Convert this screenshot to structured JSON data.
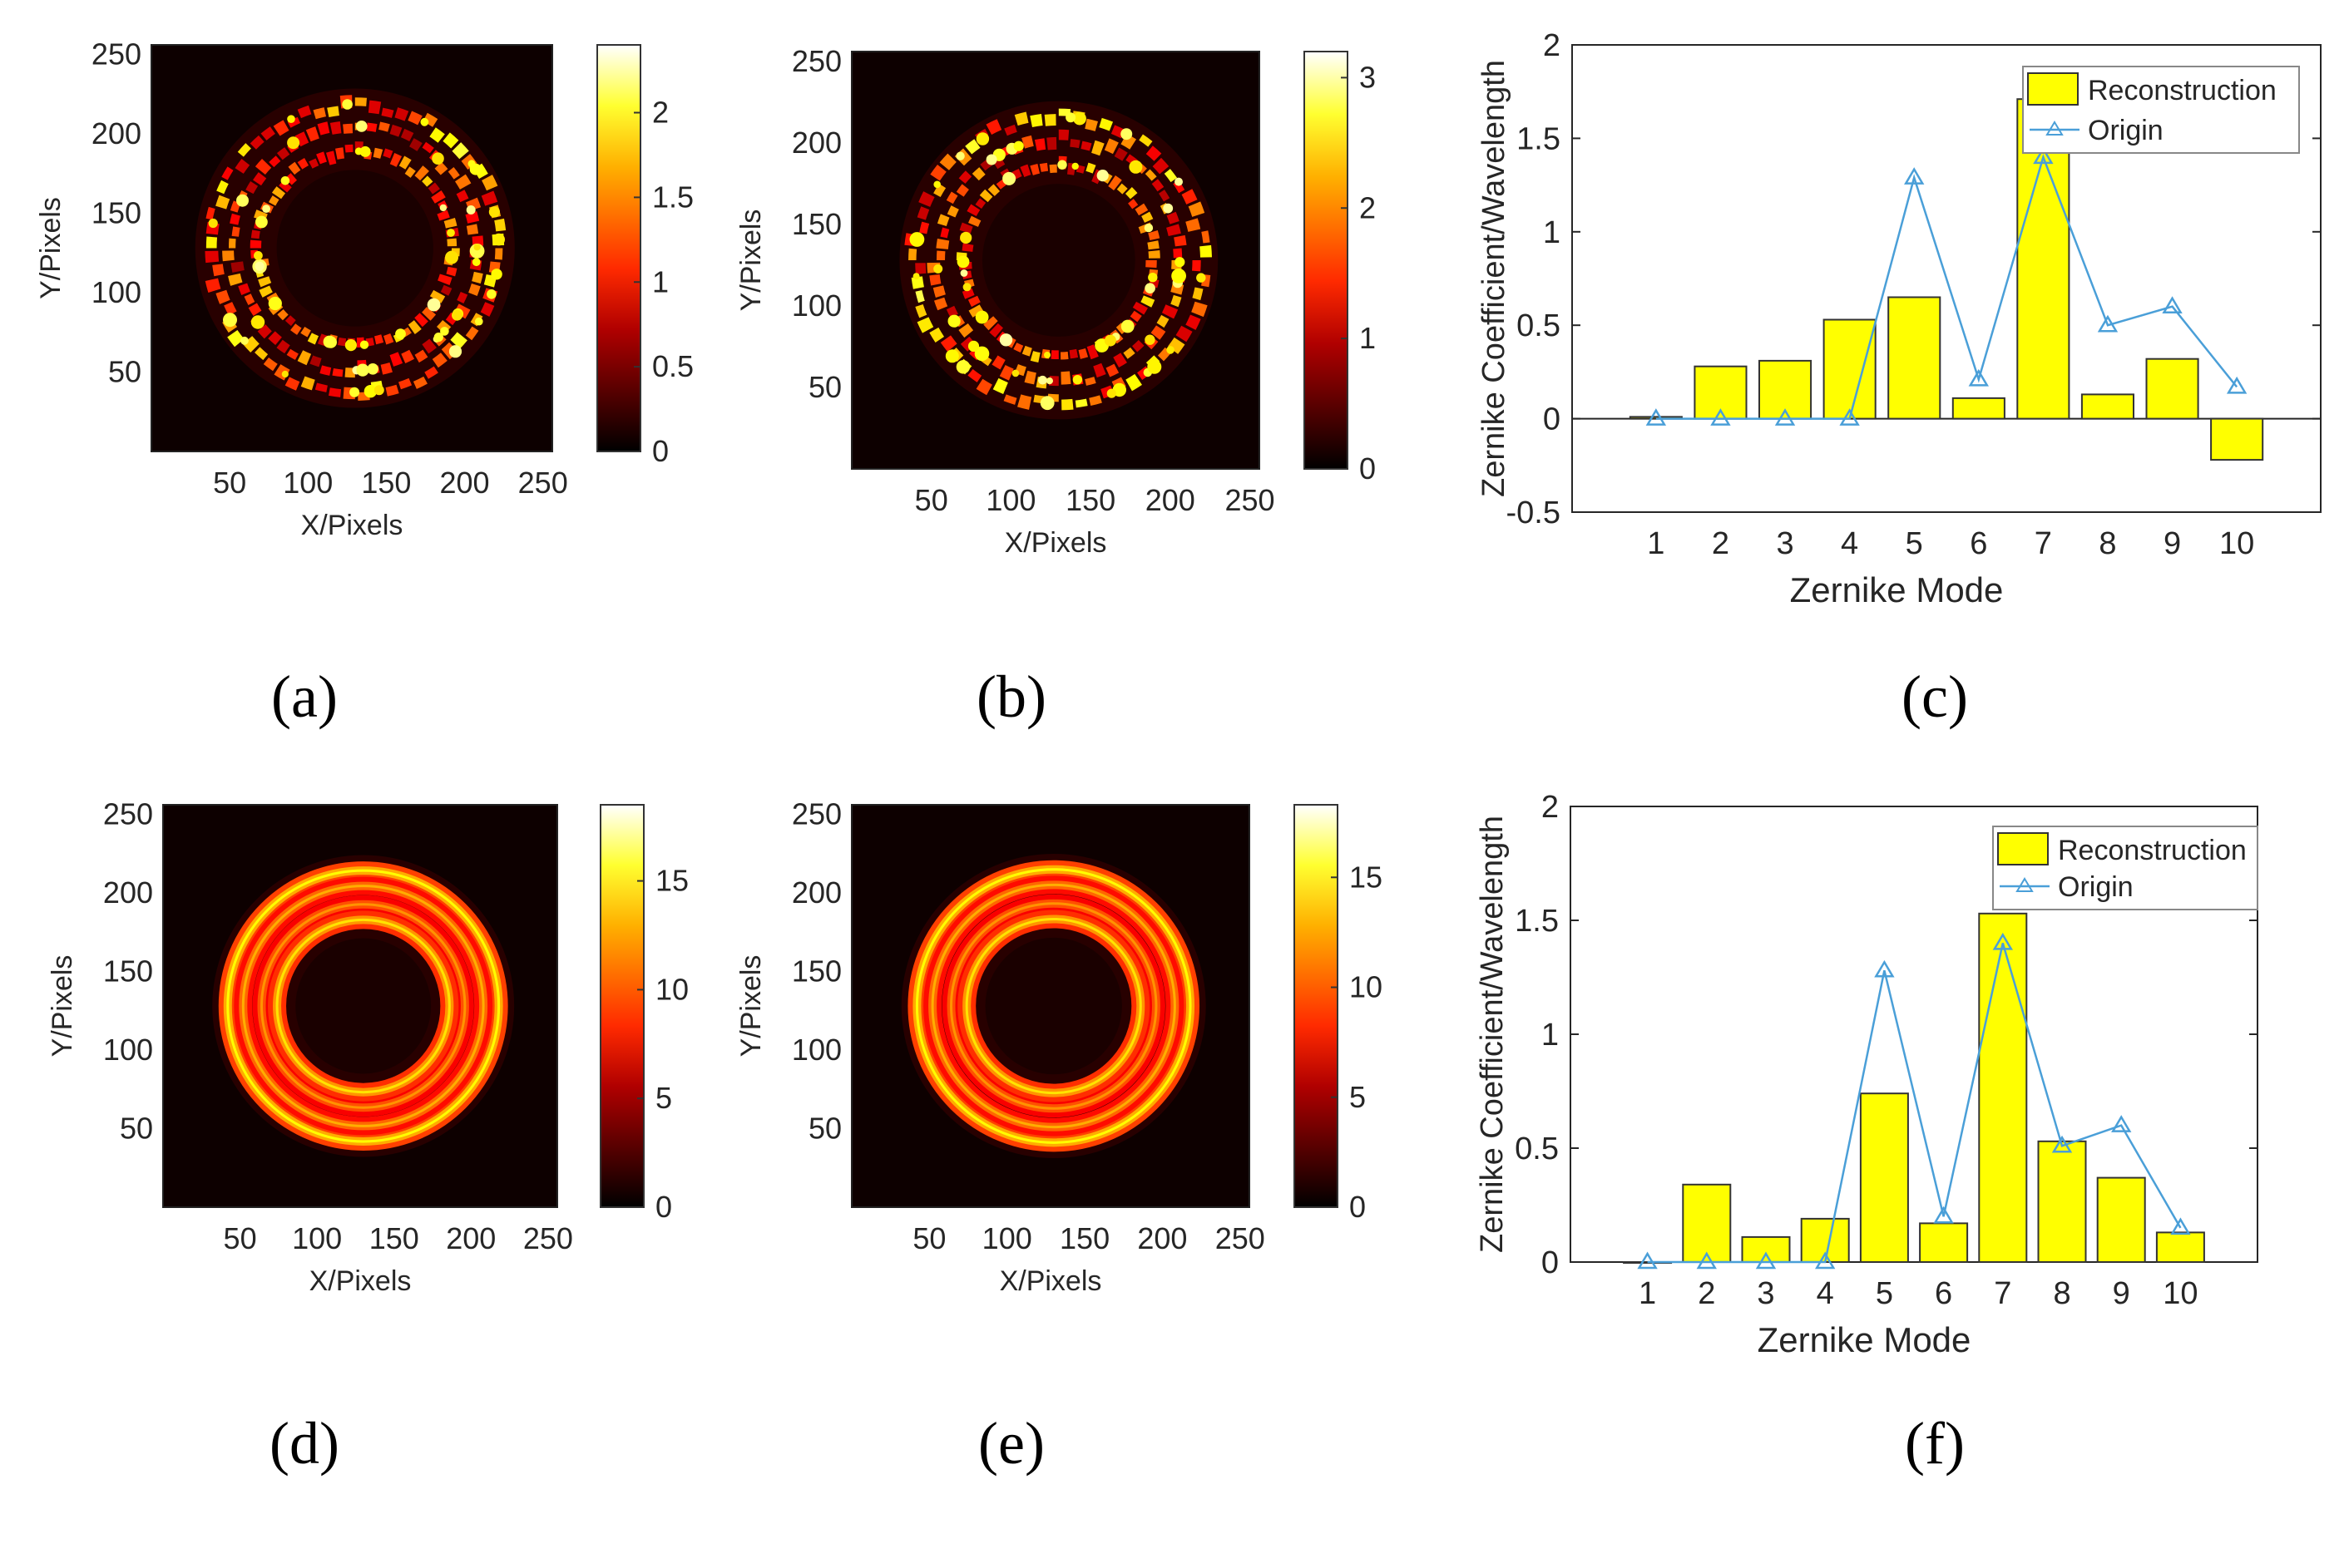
{
  "colors": {
    "bar_fill": "#ffff00",
    "bar_edge": "#333333",
    "line": "#4a9fd8",
    "axis": "#262626"
  },
  "chart_data": [
    {
      "panel": "(a)",
      "type": "heatmap",
      "xlabel": "X/Pixels",
      "ylabel": "Y/Pixels",
      "xticks": [
        "50",
        "100",
        "150",
        "200",
        "250"
      ],
      "yticks": [
        "50",
        "100",
        "150",
        "200",
        "250"
      ],
      "xlim": [
        0,
        256
      ],
      "ylim": [
        0,
        256
      ],
      "colorbar_ticks": [
        "0",
        "0.5",
        "1",
        "1.5",
        "2"
      ],
      "colorbar_range": [
        0,
        2.4
      ],
      "pattern": "broken ring, speckled",
      "rings": [
        {
          "radius": 62,
          "peak": 0.9
        },
        {
          "radius": 78,
          "peak": 0.8
        },
        {
          "radius": 92,
          "peak": 1.0
        }
      ]
    },
    {
      "panel": "(b)",
      "type": "heatmap",
      "xlabel": "X/Pixels",
      "ylabel": "Y/Pixels",
      "xticks": [
        "50",
        "100",
        "150",
        "200",
        "250"
      ],
      "yticks": [
        "50",
        "100",
        "150",
        "200",
        "250"
      ],
      "xlim": [
        0,
        256
      ],
      "ylim": [
        0,
        256
      ],
      "colorbar_ticks": [
        "0",
        "1",
        "2",
        "3"
      ],
      "colorbar_range": [
        0,
        3.2
      ],
      "pattern": "broken ring, speckled",
      "rings": [
        {
          "radius": 60,
          "peak": 0.9
        },
        {
          "radius": 76,
          "peak": 0.85
        },
        {
          "radius": 90,
          "peak": 1.0
        }
      ]
    },
    {
      "panel": "(c)",
      "type": "bar",
      "xlabel": "Zernike Mode",
      "ylabel": "Zernike Coefficient/Wavelength",
      "categories": [
        "1",
        "2",
        "3",
        "4",
        "5",
        "6",
        "7",
        "8",
        "9",
        "10"
      ],
      "yticks": [
        "-0.5",
        "0",
        "0.5",
        "1",
        "1.5",
        "2"
      ],
      "ylim": [
        -0.5,
        2
      ],
      "legend_position": "top-right",
      "series": [
        {
          "name": "Reconstruction",
          "type": "bar",
          "values": [
            0.01,
            0.28,
            0.31,
            0.53,
            0.65,
            0.11,
            1.71,
            0.13,
            0.32,
            -0.22
          ]
        },
        {
          "name": "Origin",
          "type": "line",
          "values": [
            0,
            0,
            0,
            0,
            1.29,
            0.21,
            1.4,
            0.5,
            0.6,
            0.17
          ]
        }
      ]
    },
    {
      "panel": "(d)",
      "type": "heatmap",
      "xlabel": "X/Pixels",
      "ylabel": "Y/Pixels",
      "xticks": [
        "50",
        "100",
        "150",
        "200",
        "250"
      ],
      "yticks": [
        "50",
        "100",
        "150",
        "200",
        "250"
      ],
      "xlim": [
        0,
        256
      ],
      "ylim": [
        0,
        256
      ],
      "colorbar_ticks": [
        "0",
        "5",
        "10",
        "15"
      ],
      "colorbar_range": [
        0,
        18.5
      ],
      "pattern": "smooth concentric rings",
      "rings": [
        {
          "radius": 56,
          "peak": 0.95
        },
        {
          "radius": 66,
          "peak": 0.8
        },
        {
          "radius": 78,
          "peak": 0.85
        },
        {
          "radius": 88,
          "peak": 1.0
        }
      ]
    },
    {
      "panel": "(e)",
      "type": "heatmap",
      "xlabel": "X/Pixels",
      "ylabel": "Y/Pixels",
      "xticks": [
        "50",
        "100",
        "150",
        "200",
        "250"
      ],
      "yticks": [
        "50",
        "100",
        "150",
        "200",
        "250"
      ],
      "xlim": [
        0,
        256
      ],
      "ylim": [
        0,
        256
      ],
      "colorbar_ticks": [
        "0",
        "5",
        "10",
        "15"
      ],
      "colorbar_range": [
        0,
        18.3
      ],
      "pattern": "smooth concentric rings",
      "rings": [
        {
          "radius": 56,
          "peak": 0.95
        },
        {
          "radius": 66,
          "peak": 0.8
        },
        {
          "radius": 78,
          "peak": 0.85
        },
        {
          "radius": 88,
          "peak": 1.0
        }
      ]
    },
    {
      "panel": "(f)",
      "type": "bar",
      "xlabel": "Zernike Mode",
      "ylabel": "Zernike Coefficient/Wavelength",
      "categories": [
        "1",
        "2",
        "3",
        "4",
        "5",
        "6",
        "7",
        "8",
        "9",
        "10"
      ],
      "yticks": [
        "0",
        "0.5",
        "1",
        "1.5",
        "2"
      ],
      "ylim": [
        0,
        2
      ],
      "legend_position": "top-right",
      "series": [
        {
          "name": "Reconstruction",
          "type": "bar",
          "values": [
            0,
            0.34,
            0.11,
            0.19,
            0.74,
            0.17,
            1.53,
            0.53,
            0.37,
            0.13
          ]
        },
        {
          "name": "Origin",
          "type": "line",
          "values": [
            0,
            0,
            0,
            0,
            1.28,
            0.2,
            1.4,
            0.51,
            0.6,
            0.15
          ]
        }
      ]
    }
  ]
}
